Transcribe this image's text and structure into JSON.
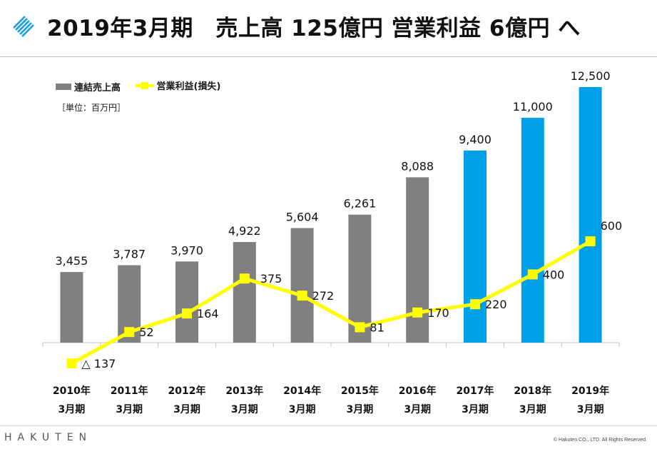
{
  "header": {
    "title": "2019年3月期　売上高 125億円  営業利益 6億円 へ"
  },
  "colors": {
    "bar_actual": "#808080",
    "bar_forecast": "#00a0e9",
    "line": "#ffff00",
    "accent": "#1aa0dc"
  },
  "chart_data": {
    "type": "bar",
    "categories": [
      "2010年\n3月期",
      "2011年\n3月期",
      "2012年\n3月期",
      "2013年\n3月期",
      "2014年\n3月期",
      "2015年\n3月期",
      "2016年\n3月期",
      "2017年\n3月期",
      "2018年\n3月期",
      "2019年\n3月期"
    ],
    "unit": "［単位：百万円］",
    "series": [
      {
        "name": "連結売上高",
        "type": "bar",
        "values": [
          3455,
          3787,
          3970,
          4922,
          5604,
          6261,
          8088,
          9400,
          11000,
          12500
        ],
        "labels": [
          "3,455",
          "3,787",
          "3,970",
          "4,922",
          "5,604",
          "6,261",
          "8,088",
          "9,400",
          "11,000",
          "12,500"
        ],
        "forecast_from_index": 7
      },
      {
        "name": "営業利益(損失)",
        "type": "line",
        "values": [
          -137,
          52,
          164,
          375,
          272,
          81,
          170,
          220,
          400,
          600
        ],
        "labels": [
          "△ 137",
          "52",
          "164",
          "375",
          "272",
          "81",
          "170",
          "220",
          "400",
          "600"
        ]
      }
    ]
  },
  "footer": {
    "brand": "HAKUTEN",
    "copyright": "© Hakuten CO., LTD.  All Rights Reserved."
  }
}
